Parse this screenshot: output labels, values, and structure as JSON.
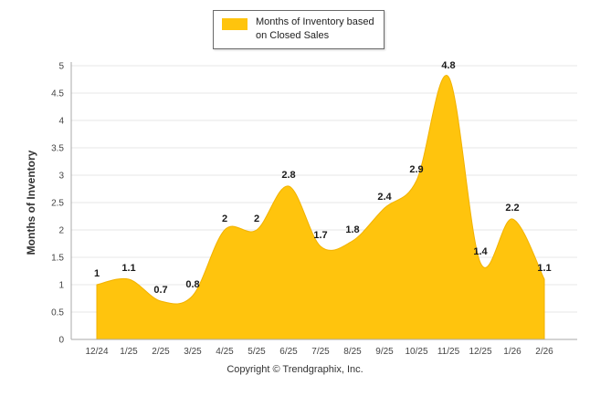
{
  "legend": {
    "line1": "Months of Inventory based",
    "line2": "on Closed Sales"
  },
  "footer": {
    "copyright": "Copyright © Trendgraphix, Inc."
  },
  "chart_data": {
    "type": "area",
    "title": "Months of Inventory based on Closed Sales",
    "categories": [
      "12/24",
      "1/25",
      "2/25",
      "3/25",
      "4/25",
      "5/25",
      "6/25",
      "7/25",
      "8/25",
      "9/25",
      "10/25",
      "11/25",
      "12/25",
      "1/26",
      "2/26"
    ],
    "values": [
      1,
      1.1,
      0.7,
      0.8,
      2,
      2,
      2.8,
      1.7,
      1.8,
      2.4,
      2.9,
      4.8,
      1.4,
      2.2,
      1.1
    ],
    "xlabel": "",
    "ylabel": "Months of Inventory",
    "ylim": [
      0,
      5
    ],
    "ytick_step": 0.5,
    "grid": true,
    "legend_position": "top",
    "colors": {
      "area_fill": "#FFC40D",
      "area_stroke": "#F2B200",
      "grid": "#E7E7E7",
      "axis": "#AAAAAA",
      "data_label": "#1A1A1A",
      "tick_label": "#444444"
    }
  }
}
